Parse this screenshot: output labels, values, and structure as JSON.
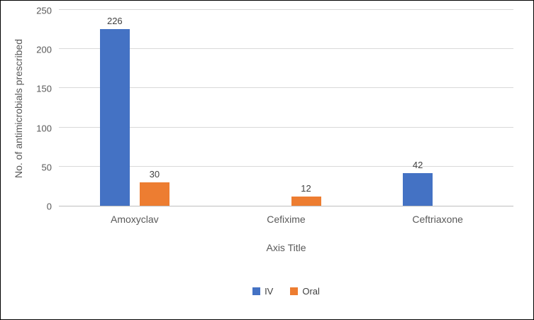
{
  "chart_data": {
    "type": "bar",
    "title": "",
    "categories": [
      "Amoxyclav",
      "Cefixime",
      "Ceftriaxone"
    ],
    "series": [
      {
        "name": "IV",
        "color": "#4472C4",
        "values": [
          226,
          null,
          42
        ]
      },
      {
        "name": "Oral",
        "color": "#ED7D31",
        "values": [
          30,
          12,
          null
        ]
      }
    ],
    "ylabel": "No. of antimicrobials prescribed",
    "xlabel": "Axis Title",
    "ylim": [
      0,
      250
    ],
    "yticks": [
      0,
      50,
      100,
      150,
      200,
      250
    ],
    "grid": true,
    "data_labels": true,
    "legend_position": "bottom",
    "colors": {
      "axis_text": "#595959",
      "data_label_text": "#404040",
      "gridline": "#D9D9D9",
      "axis_line": "#BFBFBF",
      "frame_border": "#000000",
      "background": "#FFFFFF"
    }
  }
}
